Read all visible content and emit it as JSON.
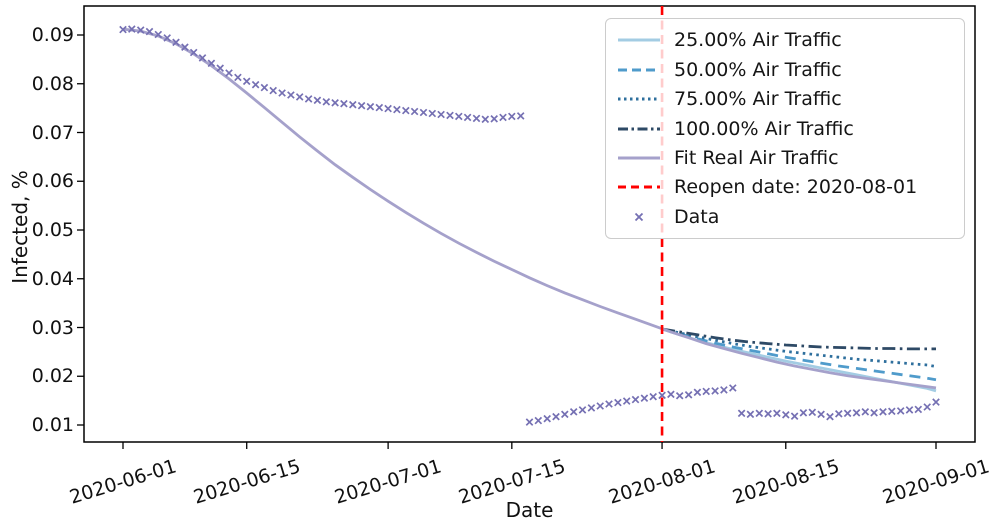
{
  "chart_data": {
    "type": "line",
    "title": "",
    "xlabel": "Date",
    "ylabel": "Infected, %",
    "grid": false,
    "legend_position": "upper right",
    "x_axis": {
      "unit": "date",
      "tick_labels": [
        "2020-06-01",
        "2020-06-15",
        "2020-07-01",
        "2020-07-15",
        "2020-08-01",
        "2020-08-15",
        "2020-09-01"
      ],
      "tick_days": [
        0,
        14,
        30,
        44,
        61,
        75,
        92
      ],
      "range_days": [
        -4.4,
        96.4
      ]
    },
    "y_axis": {
      "tick_labels": [
        "0.01",
        "0.02",
        "0.03",
        "0.04",
        "0.05",
        "0.06",
        "0.07",
        "0.08",
        "0.09"
      ],
      "tick_values": [
        0.01,
        0.02,
        0.03,
        0.04,
        0.05,
        0.06,
        0.07,
        0.08,
        0.09
      ],
      "range": [
        0.0065,
        0.0959
      ]
    },
    "colors": {
      "traffic25": "#a3cce3",
      "traffic50": "#4f9bcb",
      "traffic75": "#2e6f9d",
      "traffic100": "#2e4a66",
      "fit": "#a5a1cb",
      "data_marker": "#7570b3",
      "reopen": "#ff0000",
      "spine": "#000000"
    },
    "series": [
      {
        "name": "25.00% Air Traffic",
        "color": "#a3cce3",
        "style": "solid",
        "points": [
          [
            61,
            0.0297
          ],
          [
            63,
            0.0285
          ],
          [
            65,
            0.0274
          ],
          [
            67,
            0.0264
          ],
          [
            69,
            0.0255
          ],
          [
            71,
            0.0247
          ],
          [
            73,
            0.0239
          ],
          [
            75,
            0.0231
          ],
          [
            77,
            0.0224
          ],
          [
            79,
            0.0217
          ],
          [
            81,
            0.021
          ],
          [
            83,
            0.0203
          ],
          [
            85,
            0.0196
          ],
          [
            87,
            0.0189
          ],
          [
            89,
            0.0182
          ],
          [
            91,
            0.0175
          ],
          [
            92,
            0.017
          ]
        ]
      },
      {
        "name": "50.00% Air Traffic",
        "color": "#4f9bcb",
        "style": "dashed",
        "points": [
          [
            61,
            0.0297
          ],
          [
            63,
            0.0287
          ],
          [
            65,
            0.0277
          ],
          [
            67,
            0.0268
          ],
          [
            69,
            0.026
          ],
          [
            71,
            0.0253
          ],
          [
            73,
            0.0246
          ],
          [
            75,
            0.0239
          ],
          [
            77,
            0.0233
          ],
          [
            79,
            0.0227
          ],
          [
            81,
            0.0221
          ],
          [
            83,
            0.0216
          ],
          [
            85,
            0.0211
          ],
          [
            87,
            0.0206
          ],
          [
            89,
            0.0201
          ],
          [
            91,
            0.0196
          ],
          [
            92,
            0.0193
          ]
        ]
      },
      {
        "name": "75.00% Air Traffic",
        "color": "#2e6f9d",
        "style": "dotted",
        "points": [
          [
            61,
            0.0297
          ],
          [
            63,
            0.0289
          ],
          [
            65,
            0.0281
          ],
          [
            67,
            0.0274
          ],
          [
            69,
            0.0267
          ],
          [
            71,
            0.0261
          ],
          [
            73,
            0.0256
          ],
          [
            75,
            0.0251
          ],
          [
            77,
            0.0247
          ],
          [
            79,
            0.0243
          ],
          [
            81,
            0.0239
          ],
          [
            83,
            0.0235
          ],
          [
            85,
            0.0232
          ],
          [
            87,
            0.0229
          ],
          [
            89,
            0.0226
          ],
          [
            91,
            0.0223
          ],
          [
            92,
            0.022
          ]
        ]
      },
      {
        "name": "100.00% Air Traffic",
        "color": "#2e4a66",
        "style": "dashdot",
        "points": [
          [
            61,
            0.0297
          ],
          [
            63,
            0.0291
          ],
          [
            65,
            0.0285
          ],
          [
            67,
            0.0279
          ],
          [
            69,
            0.0274
          ],
          [
            71,
            0.027
          ],
          [
            73,
            0.0267
          ],
          [
            75,
            0.0264
          ],
          [
            77,
            0.0262
          ],
          [
            79,
            0.026
          ],
          [
            81,
            0.0259
          ],
          [
            83,
            0.0258
          ],
          [
            85,
            0.0257
          ],
          [
            87,
            0.0257
          ],
          [
            89,
            0.0256
          ],
          [
            91,
            0.0256
          ],
          [
            92,
            0.0256
          ]
        ]
      },
      {
        "name": "Fit Real Air Traffic",
        "color": "#a5a1cb",
        "style": "solid",
        "points": [
          [
            0,
            0.0912
          ],
          [
            2,
            0.0908
          ],
          [
            4,
            0.0898
          ],
          [
            6,
            0.0882
          ],
          [
            8,
            0.0861
          ],
          [
            10,
            0.0837
          ],
          [
            12,
            0.081
          ],
          [
            14,
            0.0781
          ],
          [
            16,
            0.0751
          ],
          [
            18,
            0.0721
          ],
          [
            20,
            0.0691
          ],
          [
            22,
            0.0662
          ],
          [
            24,
            0.0634
          ],
          [
            26,
            0.0608
          ],
          [
            28,
            0.0583
          ],
          [
            30,
            0.0559
          ],
          [
            32,
            0.0536
          ],
          [
            34,
            0.0514
          ],
          [
            36,
            0.0493
          ],
          [
            38,
            0.0473
          ],
          [
            40,
            0.0454
          ],
          [
            42,
            0.0436
          ],
          [
            44,
            0.0419
          ],
          [
            46,
            0.0402
          ],
          [
            48,
            0.0386
          ],
          [
            50,
            0.0371
          ],
          [
            52,
            0.0357
          ],
          [
            54,
            0.0343
          ],
          [
            56,
            0.033
          ],
          [
            58,
            0.0317
          ],
          [
            60,
            0.0304
          ],
          [
            62,
            0.0291
          ],
          [
            64,
            0.0279
          ],
          [
            66,
            0.0267
          ],
          [
            68,
            0.0257
          ],
          [
            70,
            0.0247
          ],
          [
            72,
            0.0238
          ],
          [
            74,
            0.0229
          ],
          [
            76,
            0.0221
          ],
          [
            78,
            0.0214
          ],
          [
            80,
            0.0207
          ],
          [
            82,
            0.0201
          ],
          [
            84,
            0.0196
          ],
          [
            86,
            0.0191
          ],
          [
            88,
            0.0186
          ],
          [
            90,
            0.0181
          ],
          [
            92,
            0.0176
          ]
        ]
      }
    ],
    "reopen_line": {
      "label": "Reopen date: 2020-08-01",
      "day": 61,
      "color": "#ff0000",
      "style": "dashed"
    },
    "data_series": {
      "name": "Data",
      "color": "#7570b3",
      "marker": "x",
      "points": [
        [
          0,
          0.0911
        ],
        [
          1,
          0.0912
        ],
        [
          2,
          0.091
        ],
        [
          3,
          0.0907
        ],
        [
          4,
          0.0901
        ],
        [
          5,
          0.0894
        ],
        [
          6,
          0.0885
        ],
        [
          7,
          0.0875
        ],
        [
          8,
          0.0864
        ],
        [
          9,
          0.0853
        ],
        [
          10,
          0.0842
        ],
        [
          11,
          0.0832
        ],
        [
          12,
          0.0822
        ],
        [
          13,
          0.0813
        ],
        [
          14,
          0.0805
        ],
        [
          15,
          0.0798
        ],
        [
          16,
          0.0792
        ],
        [
          17,
          0.0786
        ],
        [
          18,
          0.0781
        ],
        [
          19,
          0.0777
        ],
        [
          20,
          0.0773
        ],
        [
          21,
          0.0769
        ],
        [
          22,
          0.0766
        ],
        [
          23,
          0.0763
        ],
        [
          24,
          0.0761
        ],
        [
          25,
          0.0759
        ],
        [
          26,
          0.0757
        ],
        [
          27,
          0.0755
        ],
        [
          28,
          0.0753
        ],
        [
          29,
          0.0751
        ],
        [
          30,
          0.0749
        ],
        [
          31,
          0.0747
        ],
        [
          32,
          0.0745
        ],
        [
          33,
          0.0743
        ],
        [
          34,
          0.0741
        ],
        [
          35,
          0.0739
        ],
        [
          36,
          0.0737
        ],
        [
          37,
          0.0735
        ],
        [
          38,
          0.0733
        ],
        [
          39,
          0.0731
        ],
        [
          40,
          0.0729
        ],
        [
          41,
          0.0727
        ],
        [
          42,
          0.0728
        ],
        [
          43,
          0.0731
        ],
        [
          44,
          0.0733
        ],
        [
          45,
          0.0734
        ],
        [
          46,
          0.0106
        ],
        [
          47,
          0.0109
        ],
        [
          48,
          0.0113
        ],
        [
          49,
          0.0117
        ],
        [
          50,
          0.0122
        ],
        [
          51,
          0.0127
        ],
        [
          52,
          0.0131
        ],
        [
          53,
          0.0135
        ],
        [
          54,
          0.0139
        ],
        [
          55,
          0.0143
        ],
        [
          56,
          0.0146
        ],
        [
          57,
          0.0149
        ],
        [
          58,
          0.0152
        ],
        [
          59,
          0.0155
        ],
        [
          60,
          0.0158
        ],
        [
          61,
          0.0161
        ],
        [
          62,
          0.0163
        ],
        [
          63,
          0.016
        ],
        [
          64,
          0.0162
        ],
        [
          65,
          0.0167
        ],
        [
          66,
          0.0169
        ],
        [
          67,
          0.017
        ],
        [
          68,
          0.0172
        ],
        [
          69,
          0.0176
        ],
        [
          70,
          0.0124
        ],
        [
          71,
          0.0122
        ],
        [
          72,
          0.0124
        ],
        [
          73,
          0.0123
        ],
        [
          74,
          0.0124
        ],
        [
          75,
          0.0121
        ],
        [
          76,
          0.0118
        ],
        [
          77,
          0.0125
        ],
        [
          78,
          0.0126
        ],
        [
          79,
          0.0122
        ],
        [
          80,
          0.0117
        ],
        [
          81,
          0.0123
        ],
        [
          82,
          0.0124
        ],
        [
          83,
          0.0125
        ],
        [
          84,
          0.0127
        ],
        [
          85,
          0.0125
        ],
        [
          86,
          0.0127
        ],
        [
          87,
          0.0128
        ],
        [
          88,
          0.0129
        ],
        [
          89,
          0.0131
        ],
        [
          90,
          0.0132
        ],
        [
          91,
          0.0137
        ],
        [
          92,
          0.0147
        ]
      ]
    }
  }
}
